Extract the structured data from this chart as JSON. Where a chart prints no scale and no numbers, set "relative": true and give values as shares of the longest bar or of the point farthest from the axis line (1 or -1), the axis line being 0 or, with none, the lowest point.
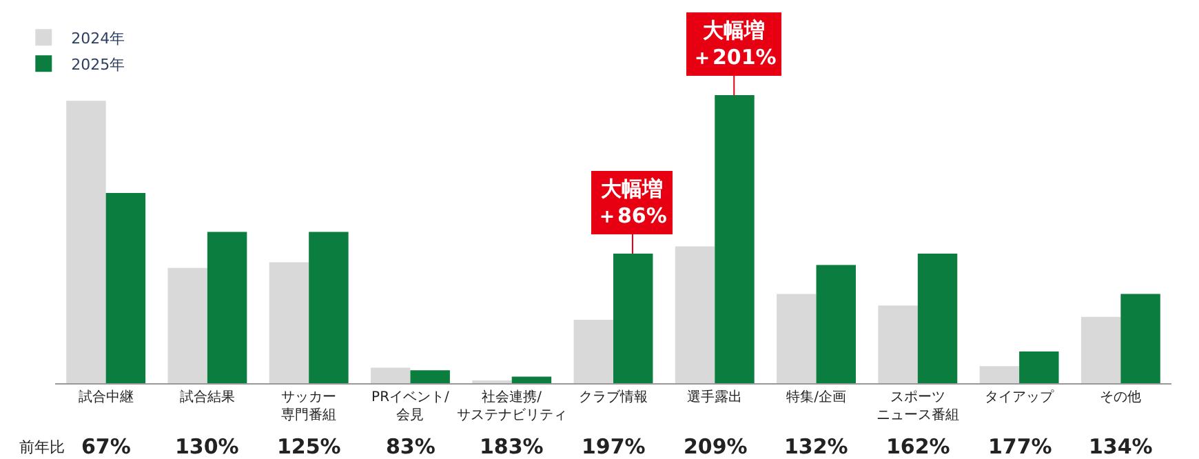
{
  "chart_data": {
    "type": "bar",
    "relative": true,
    "categories": [
      "試合中継",
      "試合結果",
      "サッカー専門番組",
      "PRイベント/会見",
      "社会連携/サステナビリティ",
      "クラブ情報",
      "選手露出",
      "特集/企画",
      "スポーツニュース番組",
      "タイアップ",
      "その他"
    ],
    "series": [
      {
        "name": "2024年",
        "color": "#d9d9d9",
        "values": [
          0.98,
          0.4,
          0.42,
          0.054,
          0.009,
          0.22,
          0.475,
          0.31,
          0.27,
          0.059,
          0.23
        ]
      },
      {
        "name": "2025年",
        "color": "#0b7d3e",
        "values": [
          0.66,
          0.525,
          0.525,
          0.045,
          0.023,
          0.45,
          1.0,
          0.41,
          0.45,
          0.11,
          0.31
        ]
      }
    ],
    "annotations": [
      "前年比",
      "67%",
      "130%",
      "125%",
      "83%",
      "183%",
      "197%",
      "209%",
      "132%",
      "162%",
      "177%",
      "134%",
      {
        "text": "大幅増",
        "x": "クラブ情報",
        "y": 0.45
      },
      {
        "text": "＋86%",
        "x": "クラブ情報",
        "y": 0.45
      },
      {
        "text": "大幅増",
        "x": "選手露出",
        "y": 1.0
      },
      {
        "text": "＋201%",
        "x": "選手露出",
        "y": 1.0
      }
    ],
    "legend": "top left"
  }
}
